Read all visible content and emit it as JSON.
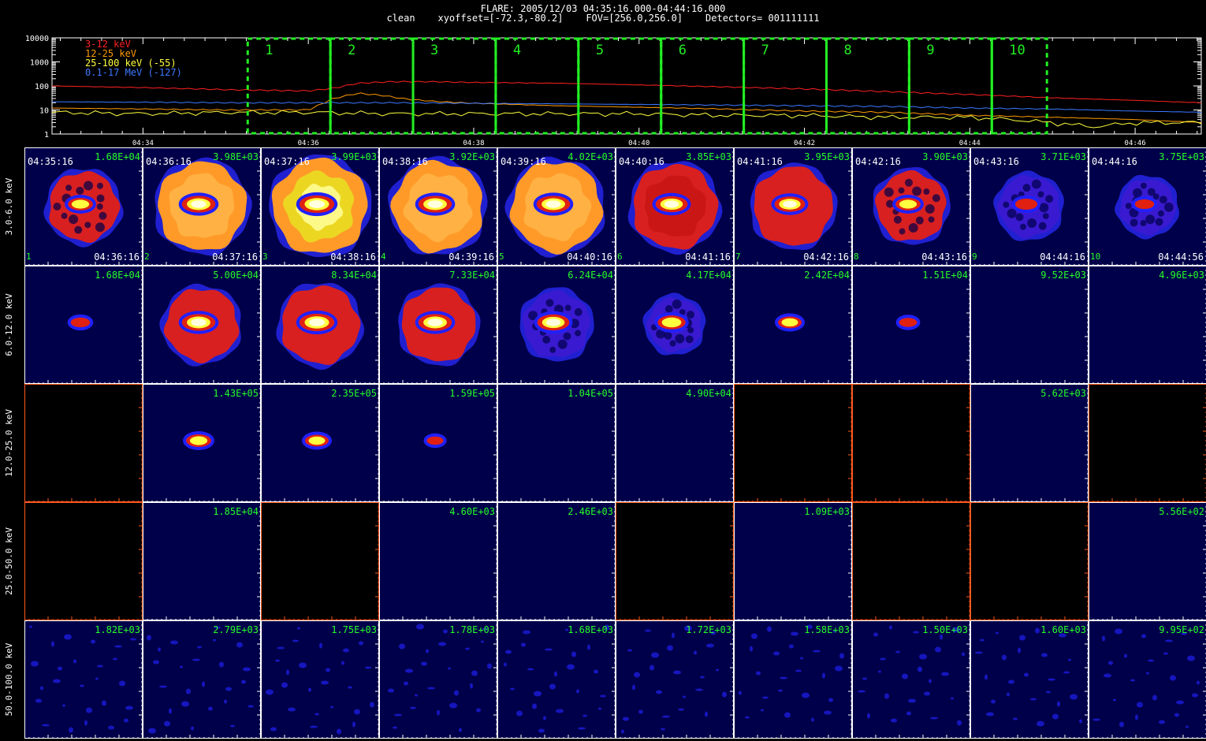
{
  "header": {
    "title": "FLARE: 2005/12/03 04:35:16.000-04:44:16.000",
    "subtitle": "clean    xyoffset=[-72.3,-80.2]    FOV=[256.0,256.0]    Detectors= 001111111"
  },
  "chart_data": [
    {
      "type": "line",
      "y_log": true,
      "ylim": [
        1,
        10000
      ],
      "y_ticks": [
        "10000",
        "1000",
        "100",
        "10",
        "1"
      ],
      "x_ticks": [
        "04:34",
        "04:36",
        "04:38",
        "04:40",
        "04:42",
        "04:44",
        "04:46"
      ],
      "x_minutes": [
        0,
        2,
        4,
        6,
        8,
        10,
        12
      ],
      "x_range_minutes": [
        -1.1,
        12.8
      ],
      "series": [
        {
          "name": "3-12 keV",
          "color": "#ff2020",
          "x": [
            -1.1,
            0,
            1,
            2.0,
            2.3,
            2.6,
            3,
            3.5,
            4,
            5,
            6,
            7,
            8,
            9,
            10,
            11,
            12,
            12.8
          ],
          "y": [
            100,
            85,
            70,
            62,
            80,
            130,
            150,
            150,
            140,
            130,
            110,
            92,
            75,
            58,
            44,
            32,
            25,
            20
          ]
        },
        {
          "name": "12-25 keV",
          "color": "#ff9a00",
          "x": [
            -1.1,
            0,
            1,
            2.0,
            2.3,
            2.6,
            2.9,
            3.2,
            3.6,
            4,
            5,
            6,
            7,
            8,
            9,
            10,
            11,
            12,
            12.8
          ],
          "y": [
            12,
            11,
            10,
            10,
            30,
            50,
            40,
            28,
            22,
            19,
            15,
            13,
            11,
            9,
            8,
            6,
            5,
            4,
            3
          ]
        },
        {
          "name": "25-100 keV (-55)",
          "color": "#ffff40",
          "x": [
            -1.1,
            0,
            1,
            2,
            3,
            4,
            5,
            6,
            7,
            8,
            9,
            10,
            10.5,
            11,
            11.5,
            12,
            12.8
          ],
          "y": [
            8,
            7,
            8,
            8,
            7,
            7,
            7,
            7,
            6,
            6,
            5,
            5,
            4,
            3,
            2,
            3,
            3
          ]
        },
        {
          "name": "0.1-17 MeV (-127)",
          "color": "#3c78ff",
          "x": [
            -1.1,
            0,
            1,
            2,
            3,
            4,
            5,
            6,
            7,
            8,
            9,
            10,
            11,
            12,
            12.8
          ],
          "y": [
            22,
            21,
            20,
            20,
            20,
            19,
            18,
            17,
            16,
            15,
            14,
            12,
            11,
            9,
            8
          ]
        }
      ],
      "intervals": {
        "labels": [
          "1",
          "2",
          "3",
          "4",
          "5",
          "6",
          "7",
          "8",
          "9",
          "10"
        ],
        "start_minutes": [
          1.2667,
          2.2667,
          3.2667,
          4.2667,
          5.2667,
          6.2667,
          7.2667,
          8.2667,
          9.2667,
          10.2667
        ],
        "end_minutes": [
          2.2667,
          3.2667,
          4.2667,
          5.2667,
          6.2667,
          7.2667,
          8.2667,
          9.2667,
          10.2667,
          10.9333
        ],
        "color": "#22ee22"
      }
    },
    {
      "type": "heatmap",
      "rows": [
        {
          "label": "3.0-6.0 keV",
          "peaks": [
            "1.68E+04",
            "3.98E+03",
            "3.99E+03",
            "3.92E+03",
            "4.02E+03",
            "3.85E+03",
            "3.95E+03",
            "3.90E+03",
            "3.71E+03",
            "3.75E+03"
          ],
          "blank": [
            false,
            false,
            false,
            false,
            false,
            false,
            false,
            false,
            false,
            false
          ],
          "source": [
            0.55,
            0.85,
            0.9,
            0.85,
            0.85,
            0.8,
            0.75,
            0.55,
            0.45,
            0.35
          ],
          "halo": [
            0.55,
            0.85,
            0.95,
            0.88,
            0.88,
            0.78,
            0.7,
            0.55,
            0.42,
            0.32
          ]
        },
        {
          "label": "6.0-12.0 keV",
          "peaks": [
            "1.68E+04",
            "5.00E+04",
            "8.34E+04",
            "7.33E+04",
            "6.24E+04",
            "4.17E+04",
            "2.42E+04",
            "1.51E+04",
            "9.52E+03",
            "4.96E+03"
          ],
          "blank": [
            false,
            false,
            false,
            false,
            false,
            false,
            false,
            false,
            false,
            false
          ],
          "source": [
            0.35,
            0.85,
            0.9,
            0.85,
            0.8,
            0.65,
            0.5,
            0.3,
            0,
            0
          ],
          "halo": [
            0,
            0.6,
            0.68,
            0.62,
            0.5,
            0.3,
            0,
            0,
            0,
            0
          ]
        },
        {
          "label": "12.0-25.0 keV",
          "peaks": [
            "",
            "1.43E+05",
            "2.35E+05",
            "1.59E+05",
            "1.04E+05",
            "4.90E+04",
            "",
            "",
            "5.62E+03",
            ""
          ],
          "blank": [
            true,
            false,
            false,
            false,
            false,
            false,
            true,
            true,
            false,
            true
          ],
          "source": [
            0,
            0.55,
            0.5,
            0.25,
            0,
            0,
            0,
            0,
            0,
            0
          ],
          "halo": [
            0,
            0,
            0,
            0,
            0,
            0,
            0,
            0,
            0,
            0
          ]
        },
        {
          "label": "25.0-50.0 keV",
          "peaks": [
            "",
            "1.85E+04",
            "",
            "4.60E+03",
            "2.46E+03",
            "",
            "1.09E+03",
            "",
            "",
            "5.56E+02"
          ],
          "blank": [
            true,
            false,
            true,
            false,
            false,
            true,
            false,
            true,
            true,
            false
          ],
          "source": [
            0,
            0,
            0,
            0,
            0,
            0,
            0,
            0,
            0,
            0
          ],
          "halo": [
            0,
            0,
            0,
            0,
            0,
            0,
            0,
            0,
            0,
            0
          ]
        },
        {
          "label": "50.0-100.0 keV",
          "peaks": [
            "1.82E+03",
            "2.79E+03",
            "1.75E+03",
            "1.78E+03",
            "1.68E+03",
            "1.72E+03",
            "1.58E+03",
            "1.50E+03",
            "1.60E+03",
            "9.95E+02"
          ],
          "blank": [
            false,
            false,
            false,
            false,
            false,
            false,
            false,
            false,
            false,
            false
          ],
          "source": [
            0,
            0,
            0,
            0,
            0,
            0,
            0,
            0,
            0,
            0
          ],
          "halo": [
            0,
            0,
            0,
            0,
            0,
            0,
            0,
            0,
            0,
            0
          ]
        }
      ],
      "start_times": [
        "04:35:16",
        "04:36:16",
        "04:37:16",
        "04:38:16",
        "04:39:16",
        "04:40:16",
        "04:41:16",
        "04:42:16",
        "04:43:16",
        "04:44:16"
      ],
      "end_times": [
        "04:36:16",
        "04:37:16",
        "04:38:16",
        "04:39:16",
        "04:40:16",
        "04:41:16",
        "04:42:16",
        "04:43:16",
        "04:44:16",
        "04:44:56"
      ],
      "interval_labels": [
        "1",
        "2",
        "3",
        "4",
        "5",
        "6",
        "7",
        "8",
        "9",
        "10"
      ]
    }
  ]
}
